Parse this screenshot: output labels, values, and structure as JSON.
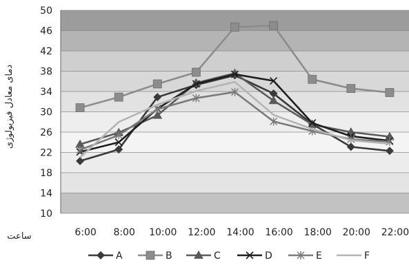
{
  "chart_data": {
    "type": "line",
    "title": "",
    "xlabel": "ساعت",
    "ylabel": "دمای معادل فیزیولوژی",
    "categories": [
      "6:00",
      "8:00",
      "10:00",
      "12:00",
      "14:00",
      "16:00",
      "18:00",
      "20:00",
      "22:00"
    ],
    "y_ticks": [
      "10",
      "14",
      "18",
      "22",
      "26",
      "30",
      "34",
      "38",
      "42",
      "46",
      "50"
    ],
    "ylim": [
      10,
      50
    ],
    "grid": true,
    "legend_position": "bottom",
    "series": [
      {
        "name": "A",
        "marker": "diamond",
        "color": "#3a3a3a",
        "values": [
          20.3,
          22.6,
          32.9,
          35.3,
          37.2,
          33.6,
          27.6,
          23.1,
          22.3
        ]
      },
      {
        "name": "B",
        "marker": "square",
        "color": "#8c8c8c",
        "values": [
          30.8,
          32.9,
          35.5,
          37.8,
          46.7,
          47.0,
          36.4,
          34.6,
          33.8
        ]
      },
      {
        "name": "C",
        "marker": "triangle",
        "color": "#5a5a5a",
        "values": [
          23.6,
          25.9,
          29.3,
          35.7,
          37.6,
          32.2,
          27.5,
          26.0,
          25.1
        ]
      },
      {
        "name": "D",
        "marker": "x",
        "color": "#1e1e1e",
        "values": [
          22.1,
          24.0,
          30.6,
          35.5,
          37.4,
          36.1,
          27.8,
          25.2,
          24.3
        ]
      },
      {
        "name": "E",
        "marker": "star",
        "color": "#7a7a7a",
        "values": [
          22.5,
          25.4,
          30.5,
          32.7,
          33.9,
          28.1,
          26.2,
          24.6,
          24.1
        ]
      },
      {
        "name": "F",
        "marker": "none",
        "color": "#b4b4b4",
        "values": [
          21.0,
          28.0,
          31.4,
          34.1,
          35.9,
          29.4,
          26.6,
          24.4,
          23.7
        ]
      }
    ]
  }
}
